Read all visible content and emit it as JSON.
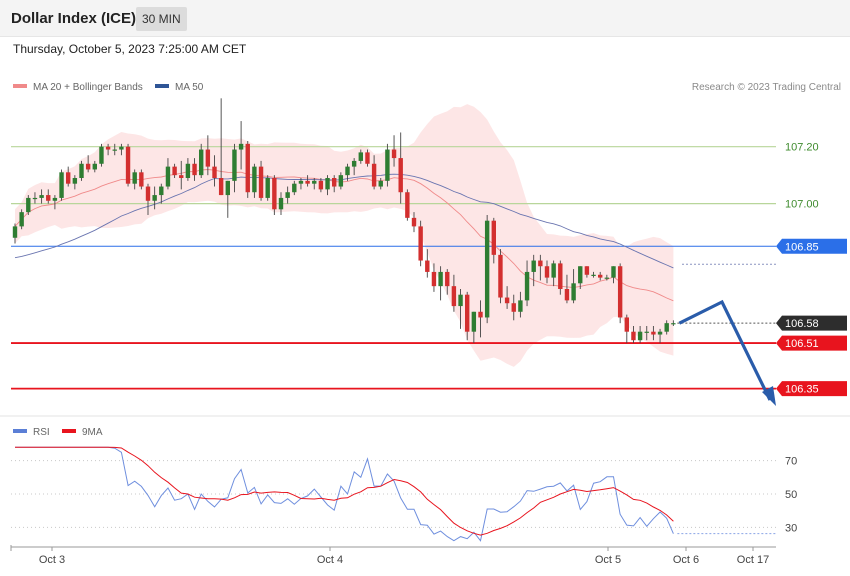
{
  "header": {
    "title": "Dollar Index (ICE)",
    "timeframe": "30 MIN",
    "datetime": "Thursday, October 5, 2023 7:25:00 AM CET"
  },
  "legend": {
    "ma20_label": "MA 20 + Bollinger Bands",
    "ma50_label": "MA 50",
    "credit": "Research © 2023 Trading Central",
    "rsi_label": "RSI",
    "rsi_ma_label": "9MA"
  },
  "colors": {
    "bull": "#2e7d32",
    "bear": "#d32f2f",
    "ma20": "#f08a8a",
    "ma50": "#6a75b0",
    "band": "#fde2e2",
    "support": "#e8141e",
    "pivot": "#2b6fe8",
    "resistance": "#b8d69a",
    "arrow": "#2a5caa",
    "last": "#2d2d2d"
  },
  "chart_data": [
    {
      "type": "candlestick",
      "title": "Dollar Index (ICE)",
      "interval": "30 MIN",
      "x_ticks": [
        "Oct 3",
        "Oct 4",
        "Oct 5",
        "Oct 6",
        "Oct 17"
      ],
      "ylim": [
        106.31,
        107.35
      ],
      "levels": [
        {
          "value": 107.2,
          "label": "107.20",
          "kind": "resistance"
        },
        {
          "value": 107.0,
          "label": "107.00",
          "kind": "resistance"
        },
        {
          "value": 106.85,
          "label": "106.85",
          "kind": "pivot"
        },
        {
          "value": 106.58,
          "label": "106.58",
          "kind": "last"
        },
        {
          "value": 106.51,
          "label": "106.51",
          "kind": "support"
        },
        {
          "value": 106.35,
          "label": "106.35",
          "kind": "support"
        }
      ],
      "candles": [
        [
          106.88,
          106.93,
          106.86,
          106.92
        ],
        [
          106.92,
          106.98,
          106.91,
          106.97
        ],
        [
          106.97,
          107.03,
          106.96,
          107.02
        ],
        [
          107.02,
          107.04,
          107.0,
          107.02
        ],
        [
          107.02,
          107.05,
          107.0,
          107.03
        ],
        [
          107.03,
          107.05,
          107.0,
          107.01
        ],
        [
          107.01,
          107.03,
          106.98,
          107.02
        ],
        [
          107.02,
          107.12,
          107.01,
          107.11
        ],
        [
          107.11,
          107.13,
          107.06,
          107.07
        ],
        [
          107.07,
          107.1,
          107.05,
          107.09
        ],
        [
          107.09,
          107.15,
          107.08,
          107.14
        ],
        [
          107.14,
          107.17,
          107.11,
          107.12
        ],
        [
          107.12,
          107.15,
          107.11,
          107.14
        ],
        [
          107.14,
          107.21,
          107.13,
          107.2
        ],
        [
          107.2,
          107.21,
          107.17,
          107.19
        ],
        [
          107.19,
          107.21,
          107.17,
          107.19
        ],
        [
          107.19,
          107.21,
          107.17,
          107.2
        ],
        [
          107.2,
          107.21,
          107.06,
          107.07
        ],
        [
          107.07,
          107.12,
          107.05,
          107.11
        ],
        [
          107.11,
          107.12,
          107.05,
          107.06
        ],
        [
          107.06,
          107.07,
          106.96,
          107.01
        ],
        [
          107.01,
          107.06,
          106.98,
          107.03
        ],
        [
          107.03,
          107.07,
          107.0,
          107.06
        ],
        [
          107.06,
          107.16,
          107.05,
          107.13
        ],
        [
          107.13,
          107.14,
          107.09,
          107.1
        ],
        [
          107.1,
          107.15,
          107.05,
          107.09
        ],
        [
          107.09,
          107.16,
          107.08,
          107.14
        ],
        [
          107.14,
          107.16,
          107.08,
          107.1
        ],
        [
          107.1,
          107.21,
          107.09,
          107.19
        ],
        [
          107.19,
          107.24,
          107.1,
          107.13
        ],
        [
          107.13,
          107.17,
          107.06,
          107.09
        ],
        [
          107.09,
          107.37,
          107.03,
          107.03
        ],
        [
          107.03,
          107.08,
          106.95,
          107.08
        ],
        [
          107.08,
          107.21,
          107.04,
          107.19
        ],
        [
          107.19,
          107.29,
          107.12,
          107.21
        ],
        [
          107.21,
          107.22,
          107.02,
          107.04
        ],
        [
          107.04,
          107.14,
          107.02,
          107.13
        ],
        [
          107.13,
          107.15,
          107.01,
          107.02
        ],
        [
          107.02,
          107.1,
          107.01,
          107.09
        ],
        [
          107.09,
          107.1,
          106.96,
          106.98
        ],
        [
          106.98,
          107.04,
          106.96,
          107.02
        ],
        [
          107.02,
          107.06,
          107.0,
          107.04
        ],
        [
          107.04,
          107.08,
          107.03,
          107.07
        ],
        [
          107.07,
          107.09,
          107.05,
          107.08
        ],
        [
          107.08,
          107.1,
          107.06,
          107.07
        ],
        [
          107.07,
          107.09,
          107.05,
          107.08
        ],
        [
          107.08,
          107.09,
          107.04,
          107.05
        ],
        [
          107.05,
          107.1,
          107.03,
          107.09
        ],
        [
          107.09,
          107.1,
          107.04,
          107.06
        ],
        [
          107.06,
          107.11,
          107.05,
          107.1
        ],
        [
          107.1,
          107.14,
          107.08,
          107.13
        ],
        [
          107.13,
          107.16,
          107.1,
          107.15
        ],
        [
          107.15,
          107.19,
          107.14,
          107.18
        ],
        [
          107.18,
          107.19,
          107.13,
          107.14
        ],
        [
          107.14,
          107.17,
          107.05,
          107.06
        ],
        [
          107.06,
          107.09,
          107.05,
          107.08
        ],
        [
          107.08,
          107.21,
          107.06,
          107.19
        ],
        [
          107.19,
          107.24,
          107.13,
          107.16
        ],
        [
          107.16,
          107.25,
          107.0,
          107.04
        ],
        [
          107.04,
          107.05,
          106.94,
          106.95
        ],
        [
          106.95,
          106.97,
          106.9,
          106.92
        ],
        [
          106.92,
          106.94,
          106.78,
          106.8
        ],
        [
          106.8,
          106.84,
          106.74,
          106.76
        ],
        [
          106.76,
          106.79,
          106.69,
          106.71
        ],
        [
          106.71,
          106.78,
          106.66,
          106.76
        ],
        [
          106.76,
          106.77,
          106.68,
          106.71
        ],
        [
          106.71,
          106.75,
          106.62,
          106.64
        ],
        [
          106.64,
          106.7,
          106.56,
          106.68
        ],
        [
          106.68,
          106.69,
          106.52,
          106.55
        ],
        [
          106.55,
          106.62,
          106.51,
          106.62
        ],
        [
          106.62,
          106.66,
          106.53,
          106.6
        ],
        [
          106.6,
          106.96,
          106.58,
          106.94
        ],
        [
          106.94,
          106.95,
          106.79,
          106.82
        ],
        [
          106.82,
          106.84,
          106.65,
          106.67
        ],
        [
          106.67,
          106.71,
          106.63,
          106.65
        ],
        [
          106.65,
          106.68,
          106.59,
          106.62
        ],
        [
          106.62,
          106.69,
          106.6,
          106.66
        ],
        [
          106.66,
          106.8,
          106.64,
          106.76
        ],
        [
          106.76,
          106.82,
          106.71,
          106.8
        ],
        [
          106.8,
          106.82,
          106.73,
          106.78
        ],
        [
          106.78,
          106.8,
          106.72,
          106.74
        ],
        [
          106.74,
          106.8,
          106.71,
          106.79
        ],
        [
          106.79,
          106.8,
          106.68,
          106.7
        ],
        [
          106.7,
          106.75,
          106.65,
          106.66
        ],
        [
          106.66,
          106.77,
          106.65,
          106.72
        ],
        [
          106.72,
          106.78,
          106.7,
          106.78
        ],
        [
          106.78,
          106.78,
          106.74,
          106.75
        ],
        [
          106.75,
          106.76,
          106.74,
          106.75
        ],
        [
          106.75,
          106.76,
          106.73,
          106.74
        ],
        [
          106.74,
          106.75,
          106.73,
          106.74
        ],
        [
          106.74,
          106.78,
          106.72,
          106.78
        ],
        [
          106.78,
          106.79,
          106.58,
          106.6
        ],
        [
          106.6,
          106.61,
          106.51,
          106.55
        ],
        [
          106.55,
          106.57,
          106.51,
          106.52
        ],
        [
          106.52,
          106.57,
          106.51,
          106.55
        ],
        [
          106.55,
          106.57,
          106.52,
          106.55
        ],
        [
          106.55,
          106.57,
          106.52,
          106.54
        ],
        [
          106.54,
          106.56,
          106.51,
          106.55
        ],
        [
          106.55,
          106.59,
          106.54,
          106.58
        ],
        [
          106.58,
          106.59,
          106.57,
          106.58
        ]
      ]
    },
    {
      "type": "line",
      "title": "RSI",
      "series": [
        {
          "name": "RSI"
        },
        {
          "name": "9MA"
        }
      ],
      "ylim": [
        20,
        80
      ],
      "yticks": [
        30,
        50,
        70
      ]
    }
  ]
}
